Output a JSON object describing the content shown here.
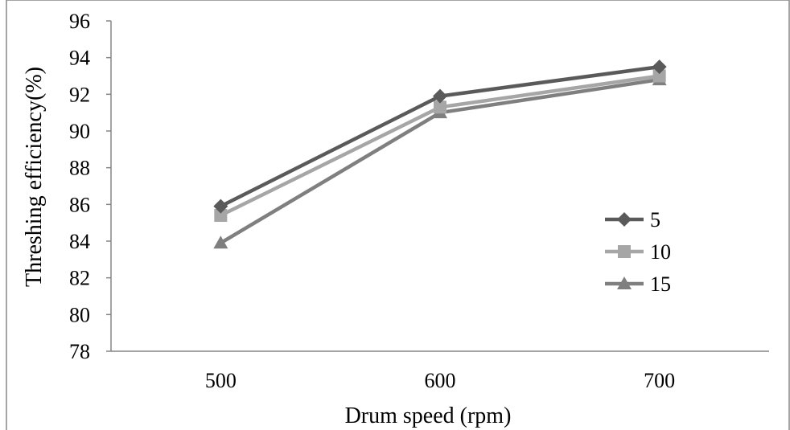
{
  "chart_data": {
    "type": "line",
    "title": "",
    "xlabel": "Drum speed (rpm)",
    "ylabel": "Threshing efficiency(%)",
    "categories": [
      "500",
      "600",
      "700"
    ],
    "ylim": [
      78,
      96
    ],
    "yticks": [
      78,
      80,
      82,
      84,
      86,
      88,
      90,
      92,
      94,
      96
    ],
    "grid": false,
    "legend_position": "right",
    "series": [
      {
        "name": "5",
        "values": [
          85.9,
          91.9,
          93.5
        ],
        "color": "#5a5a5a",
        "marker": "diamond"
      },
      {
        "name": "10",
        "values": [
          85.4,
          91.3,
          93.0
        ],
        "color": "#a6a6a6",
        "marker": "square"
      },
      {
        "name": "15",
        "values": [
          83.9,
          91.0,
          92.8
        ],
        "color": "#7f7f7f",
        "marker": "triangle"
      }
    ]
  }
}
